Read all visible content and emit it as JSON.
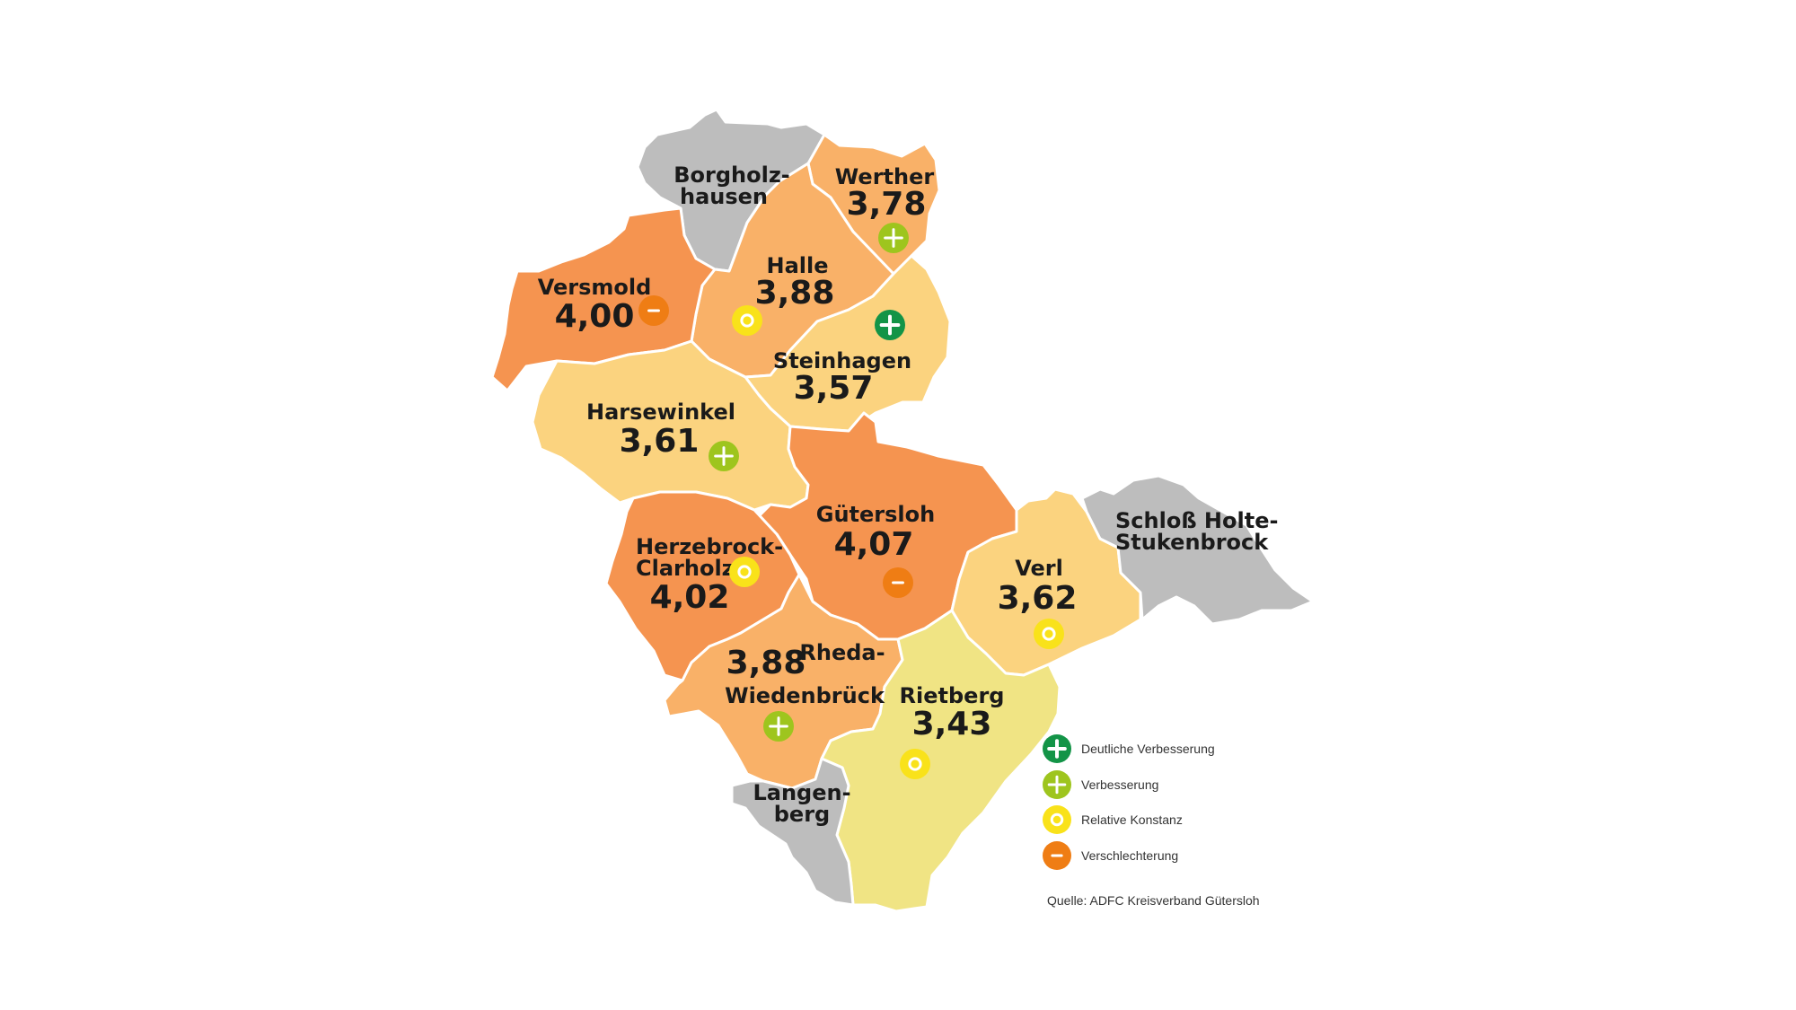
{
  "colors": {
    "grey": "#bdbdbd",
    "orange_dark": "#f59450",
    "orange_mid": "#f9b168",
    "yellow_orange": "#fbd37f",
    "yellow": "#f0e484",
    "badge_dark_green": "#139447",
    "badge_light_green": "#9ec51e",
    "badge_yellow": "#f9e21a",
    "badge_orange": "#ef7d14"
  },
  "regions": {
    "borgholzhausen": {
      "name_line1": "Borgholz-",
      "name_line2": "hausen",
      "color": "grey"
    },
    "werther": {
      "name": "Werther",
      "score": "3,78",
      "trend": "plus",
      "color": "orange_mid"
    },
    "halle": {
      "name": "Halle",
      "score": "3,88",
      "trend": "circle",
      "color": "orange_mid"
    },
    "versmold": {
      "name": "Versmold",
      "score": "4,00",
      "trend": "minus",
      "color": "orange_dark"
    },
    "steinhagen": {
      "name": "Steinhagen",
      "score": "3,57",
      "trend": "plus_strong",
      "color": "yellow_orange"
    },
    "harsewinkel": {
      "name": "Harsewinkel",
      "score": "3,61",
      "trend": "plus",
      "color": "yellow_orange"
    },
    "guetersloh": {
      "name": "Gütersloh",
      "score": "4,07",
      "trend": "minus",
      "color": "orange_dark"
    },
    "herzebrock": {
      "name_line1": "Herzebrock-",
      "name_line2": "Clarholz",
      "score": "4,02",
      "trend": "circle",
      "color": "orange_dark"
    },
    "schloss": {
      "name_line1": "Schloß Holte-",
      "name_line2": "Stukenbrock",
      "color": "grey"
    },
    "verl": {
      "name": "Verl",
      "score": "3,62",
      "trend": "circle",
      "color": "yellow_orange"
    },
    "rheda": {
      "name_line1": "Rheda-",
      "name_line2": "Wiedenbrück",
      "score": "3,88",
      "trend": "plus",
      "color": "orange_mid"
    },
    "rietberg": {
      "name": "Rietberg",
      "score": "3,43",
      "trend": "circle",
      "color": "yellow"
    },
    "langenberg": {
      "name_line1": "Langen-",
      "name_line2": "berg",
      "color": "grey"
    }
  },
  "legend": {
    "items": [
      {
        "symbol": "plus_strong",
        "icon": "plus-icon",
        "label": "Deutliche Verbesserung"
      },
      {
        "symbol": "plus",
        "icon": "plus-icon",
        "label": "Verbesserung"
      },
      {
        "symbol": "circle",
        "icon": "circle-icon",
        "label": "Relative Konstanz"
      },
      {
        "symbol": "minus",
        "icon": "minus-icon",
        "label": "Verschlechterung"
      }
    ]
  },
  "source": "Quelle: ADFC Kreisverband Gütersloh"
}
